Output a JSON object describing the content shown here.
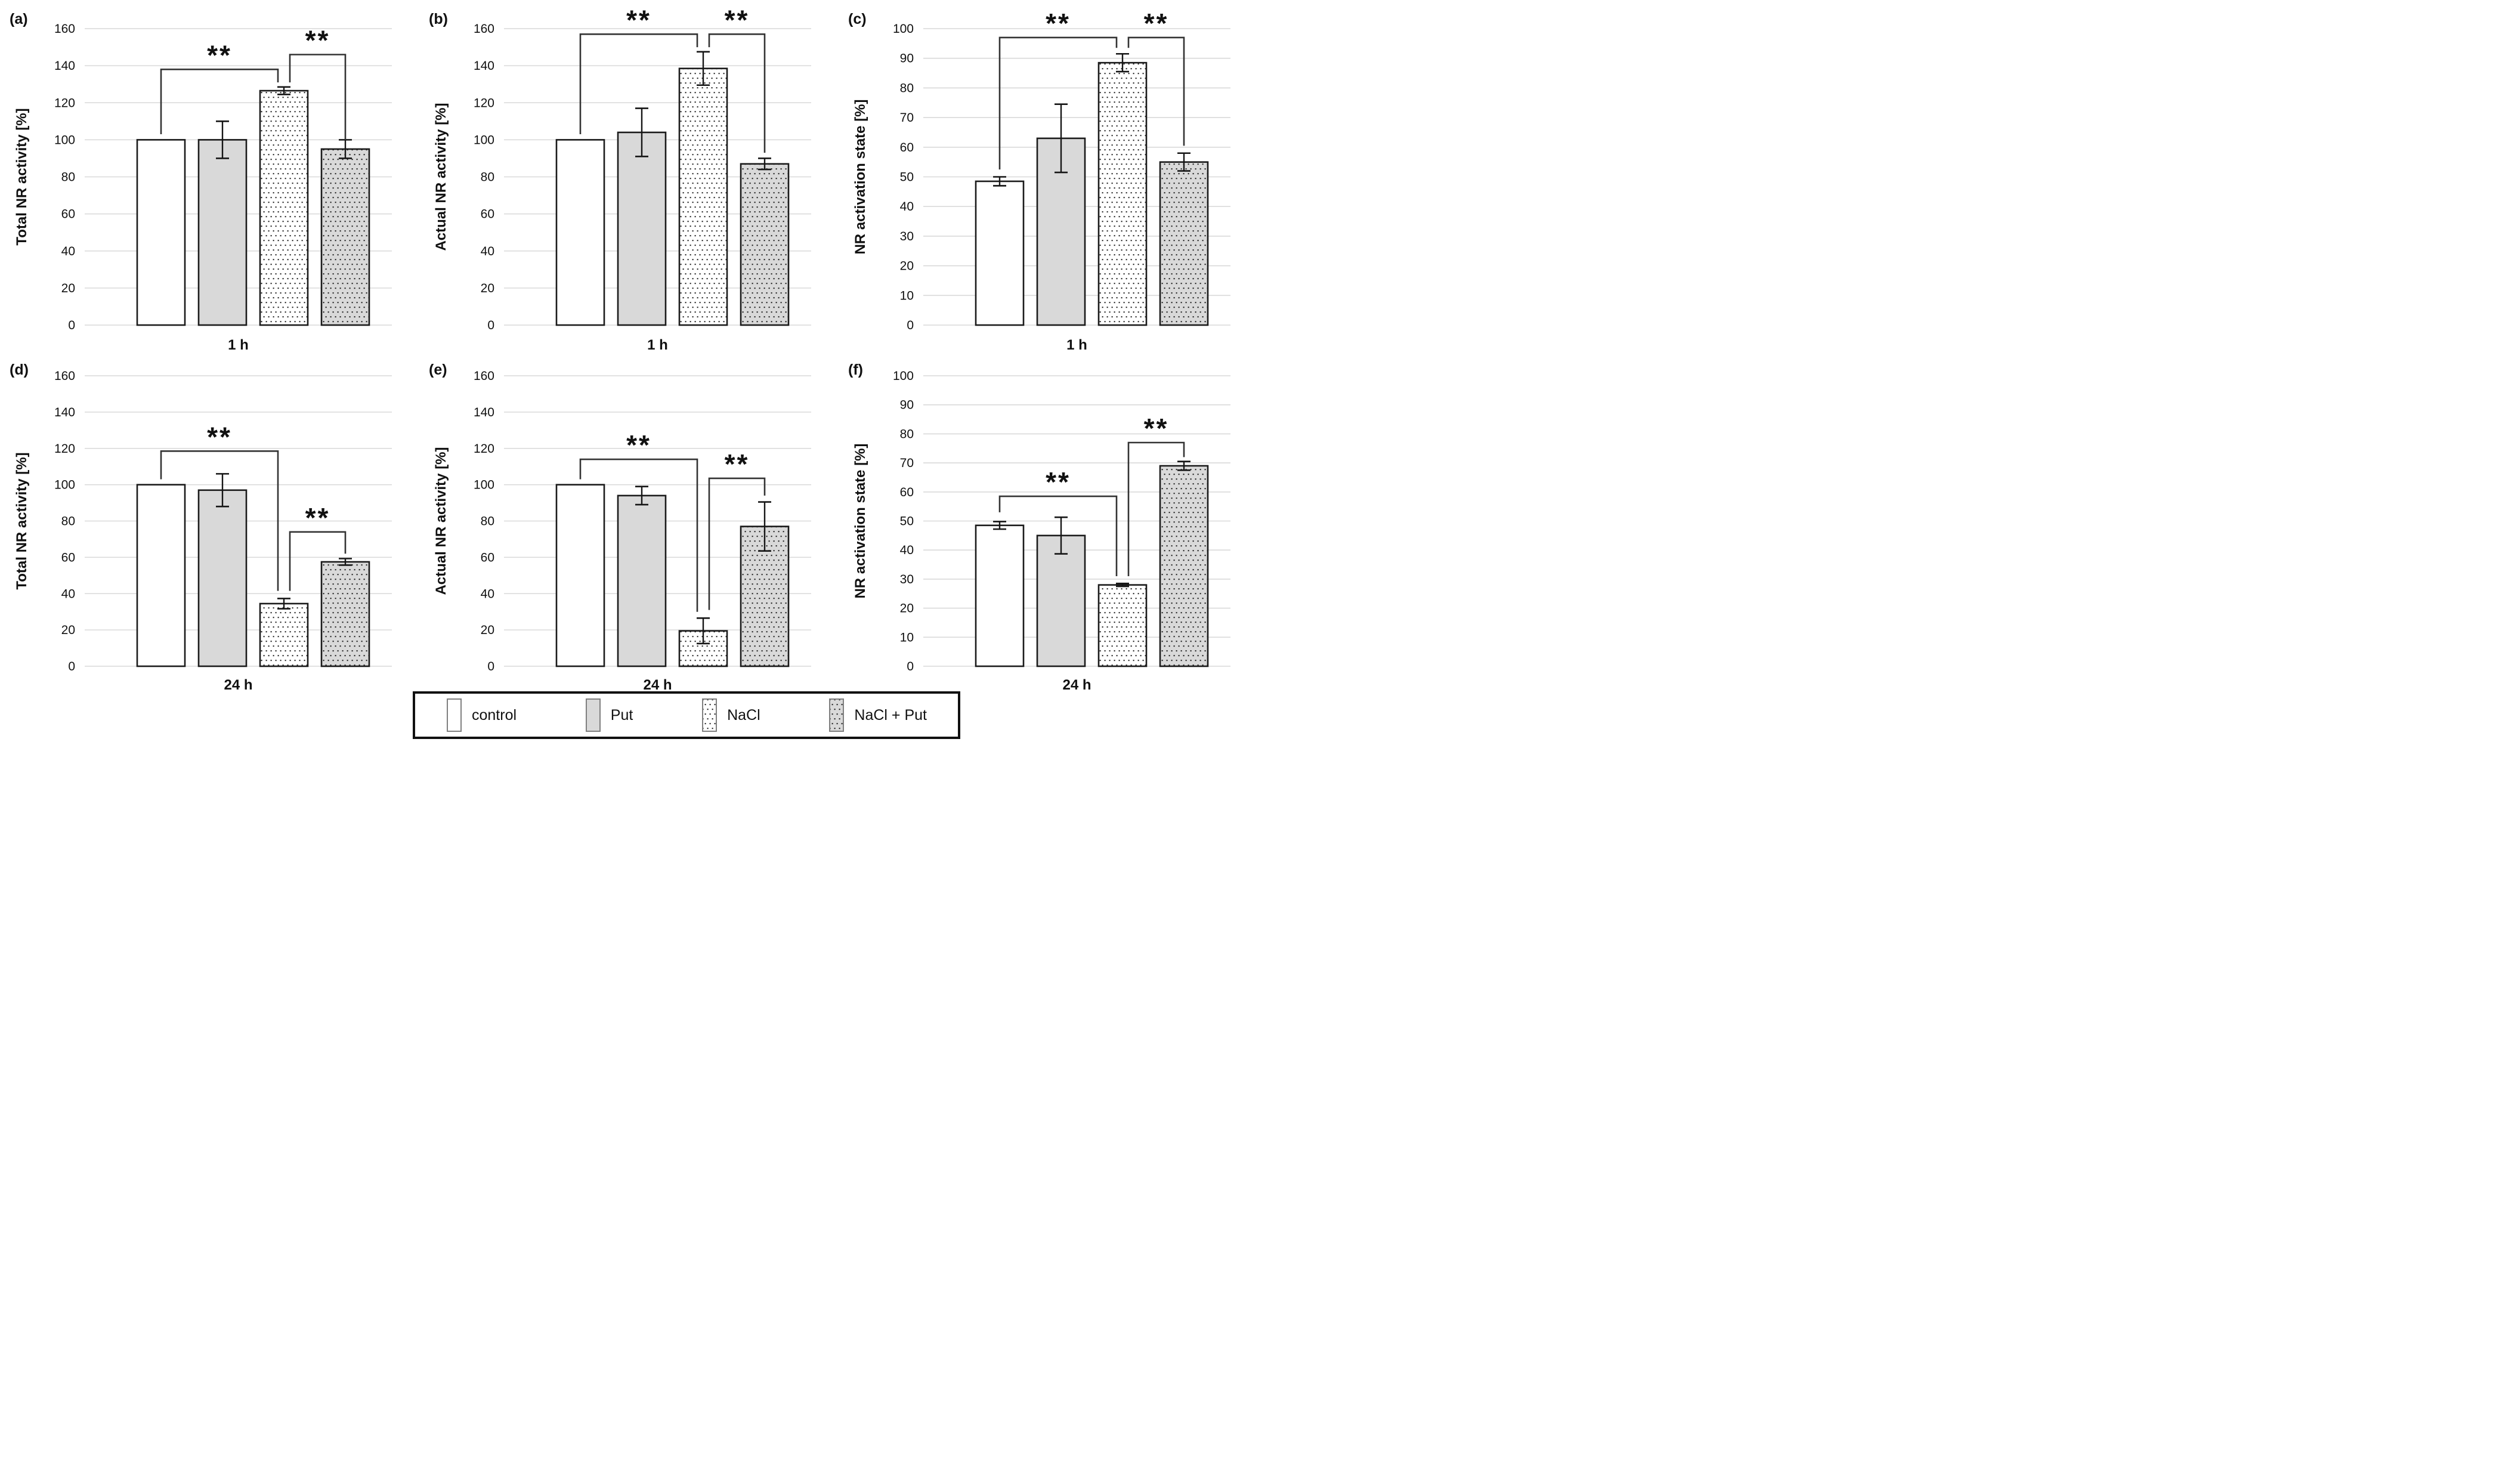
{
  "figure_title": "",
  "colors": {
    "bar_fill_light": "#ffffff",
    "bar_fill_gray": "#d9d9d9",
    "bar_border": "#1b1b1b",
    "gridline": "#d9d9d9",
    "error_bar": "#151515",
    "bracket": "#333333",
    "text": "#111111",
    "dot": "#141414",
    "legend_border": "#111111",
    "swatch_border": "#808080"
  },
  "bar_styles": [
    {
      "category": "control",
      "fill": "light",
      "dots": false
    },
    {
      "category": "Put",
      "fill": "gray",
      "dots": false
    },
    {
      "category": "NaCl",
      "fill": "light",
      "dots": true
    },
    {
      "category": "NaCl + Put",
      "fill": "gray",
      "dots": true
    }
  ],
  "legend": {
    "items": [
      {
        "label": "control",
        "fill": "light",
        "dots": false
      },
      {
        "label": "Put",
        "fill": "gray",
        "dots": false
      },
      {
        "label": "NaCl",
        "fill": "light",
        "dots": true
      },
      {
        "label": "NaCl + Put",
        "fill": "gray",
        "dots": true
      }
    ]
  },
  "chart_data": [
    {
      "type": "bar",
      "panel_label": "(a)",
      "ylabel": "Total NR activity [%]",
      "xlabel": "1 h",
      "ylim": [
        0,
        160
      ],
      "ytick_step": 20,
      "grid": true,
      "legend_position": "bottom-shared",
      "categories": [
        "control",
        "Put",
        "NaCl",
        "NaCl + Put"
      ],
      "values": [
        100,
        100,
        126.5,
        95
      ],
      "errors": [
        0,
        10,
        2,
        5
      ],
      "significance": [
        {
          "between": [
            "control",
            "NaCl"
          ],
          "label": "**",
          "line_y": 138,
          "drop_left_to": 103,
          "drop_right_to": 131
        },
        {
          "between": [
            "NaCl",
            "NaCl + Put"
          ],
          "label": "**",
          "line_y": 146,
          "drop_left_to": 131,
          "drop_right_to": 100
        }
      ]
    },
    {
      "type": "bar",
      "panel_label": "(b)",
      "ylabel": "Actual NR activity [%]",
      "xlabel": "1 h",
      "ylim": [
        0,
        160
      ],
      "ytick_step": 20,
      "grid": true,
      "legend_position": "bottom-shared",
      "categories": [
        "control",
        "Put",
        "NaCl",
        "NaCl + Put"
      ],
      "values": [
        100,
        104,
        138.5,
        87
      ],
      "errors": [
        0,
        13,
        9,
        3
      ],
      "significance": [
        {
          "between": [
            "control",
            "NaCl"
          ],
          "label": "**",
          "line_y": 157,
          "drop_left_to": 103,
          "drop_right_to": 150
        },
        {
          "between": [
            "NaCl",
            "NaCl + Put"
          ],
          "label": "**",
          "line_y": 157,
          "drop_left_to": 150,
          "drop_right_to": 93
        }
      ]
    },
    {
      "type": "bar",
      "panel_label": "(c)",
      "ylabel": "NR activation state [%]",
      "xlabel": "1 h",
      "ylim": [
        0,
        100
      ],
      "ytick_step": 10,
      "grid": true,
      "legend_position": "bottom-shared",
      "categories": [
        "control",
        "Put",
        "NaCl",
        "NaCl + Put"
      ],
      "values": [
        48.5,
        63,
        88.5,
        55
      ],
      "errors": [
        1.5,
        11.5,
        3,
        3
      ],
      "significance": [
        {
          "between": [
            "control",
            "NaCl"
          ],
          "label": "**",
          "line_y": 97,
          "drop_left_to": 52.5,
          "drop_right_to": 93.5
        },
        {
          "between": [
            "NaCl",
            "NaCl + Put"
          ],
          "label": "**",
          "line_y": 97,
          "drop_left_to": 93.5,
          "drop_right_to": 60.5
        }
      ]
    },
    {
      "type": "bar",
      "panel_label": "(d)",
      "ylabel": "Total NR activity [%]",
      "xlabel": "24 h",
      "ylim": [
        0,
        160
      ],
      "ytick_step": 20,
      "grid": true,
      "legend_position": "bottom-shared",
      "categories": [
        "control",
        "Put",
        "NaCl",
        "NaCl + Put"
      ],
      "values": [
        100,
        97,
        34.5,
        57.5
      ],
      "errors": [
        0,
        9,
        2.8,
        1.8
      ],
      "significance": [
        {
          "between": [
            "control",
            "NaCl"
          ],
          "label": "**",
          "line_y": 118.5,
          "drop_left_to": 103,
          "drop_right_to": 41.5
        },
        {
          "between": [
            "NaCl",
            "NaCl + Put"
          ],
          "label": "**",
          "line_y": 74,
          "drop_left_to": 41.5,
          "drop_right_to": 62
        }
      ]
    },
    {
      "type": "bar",
      "panel_label": "(e)",
      "ylabel": "Actual NR activity [%]",
      "xlabel": "24 h",
      "ylim": [
        0,
        160
      ],
      "ytick_step": 20,
      "grid": true,
      "legend_position": "bottom-shared",
      "categories": [
        "control",
        "Put",
        "NaCl",
        "NaCl + Put"
      ],
      "values": [
        100,
        94,
        19.5,
        77
      ],
      "errors": [
        0,
        5,
        7,
        13.5
      ],
      "significance": [
        {
          "between": [
            "control",
            "NaCl"
          ],
          "label": "**",
          "line_y": 114,
          "drop_left_to": 103,
          "drop_right_to": 30
        },
        {
          "between": [
            "NaCl",
            "NaCl + Put"
          ],
          "label": "**",
          "line_y": 103.5,
          "drop_left_to": 31,
          "drop_right_to": 94
        }
      ]
    },
    {
      "type": "bar",
      "panel_label": "(f)",
      "ylabel": "NR activation state [%]",
      "xlabel": "24 h",
      "ylim": [
        0,
        100
      ],
      "ytick_step": 10,
      "grid": true,
      "legend_position": "bottom-shared",
      "categories": [
        "control",
        "Put",
        "NaCl",
        "NaCl + Put"
      ],
      "values": [
        48.5,
        45,
        28,
        69
      ],
      "errors": [
        1.3,
        6.3,
        0.5,
        1.5
      ],
      "significance": [
        {
          "between": [
            "control",
            "NaCl"
          ],
          "label": "**",
          "line_y": 58.5,
          "drop_left_to": 53,
          "drop_right_to": 31
        },
        {
          "between": [
            "NaCl",
            "NaCl + Put"
          ],
          "label": "**",
          "line_y": 77,
          "drop_left_to": 31,
          "drop_right_to": 72
        }
      ]
    }
  ]
}
